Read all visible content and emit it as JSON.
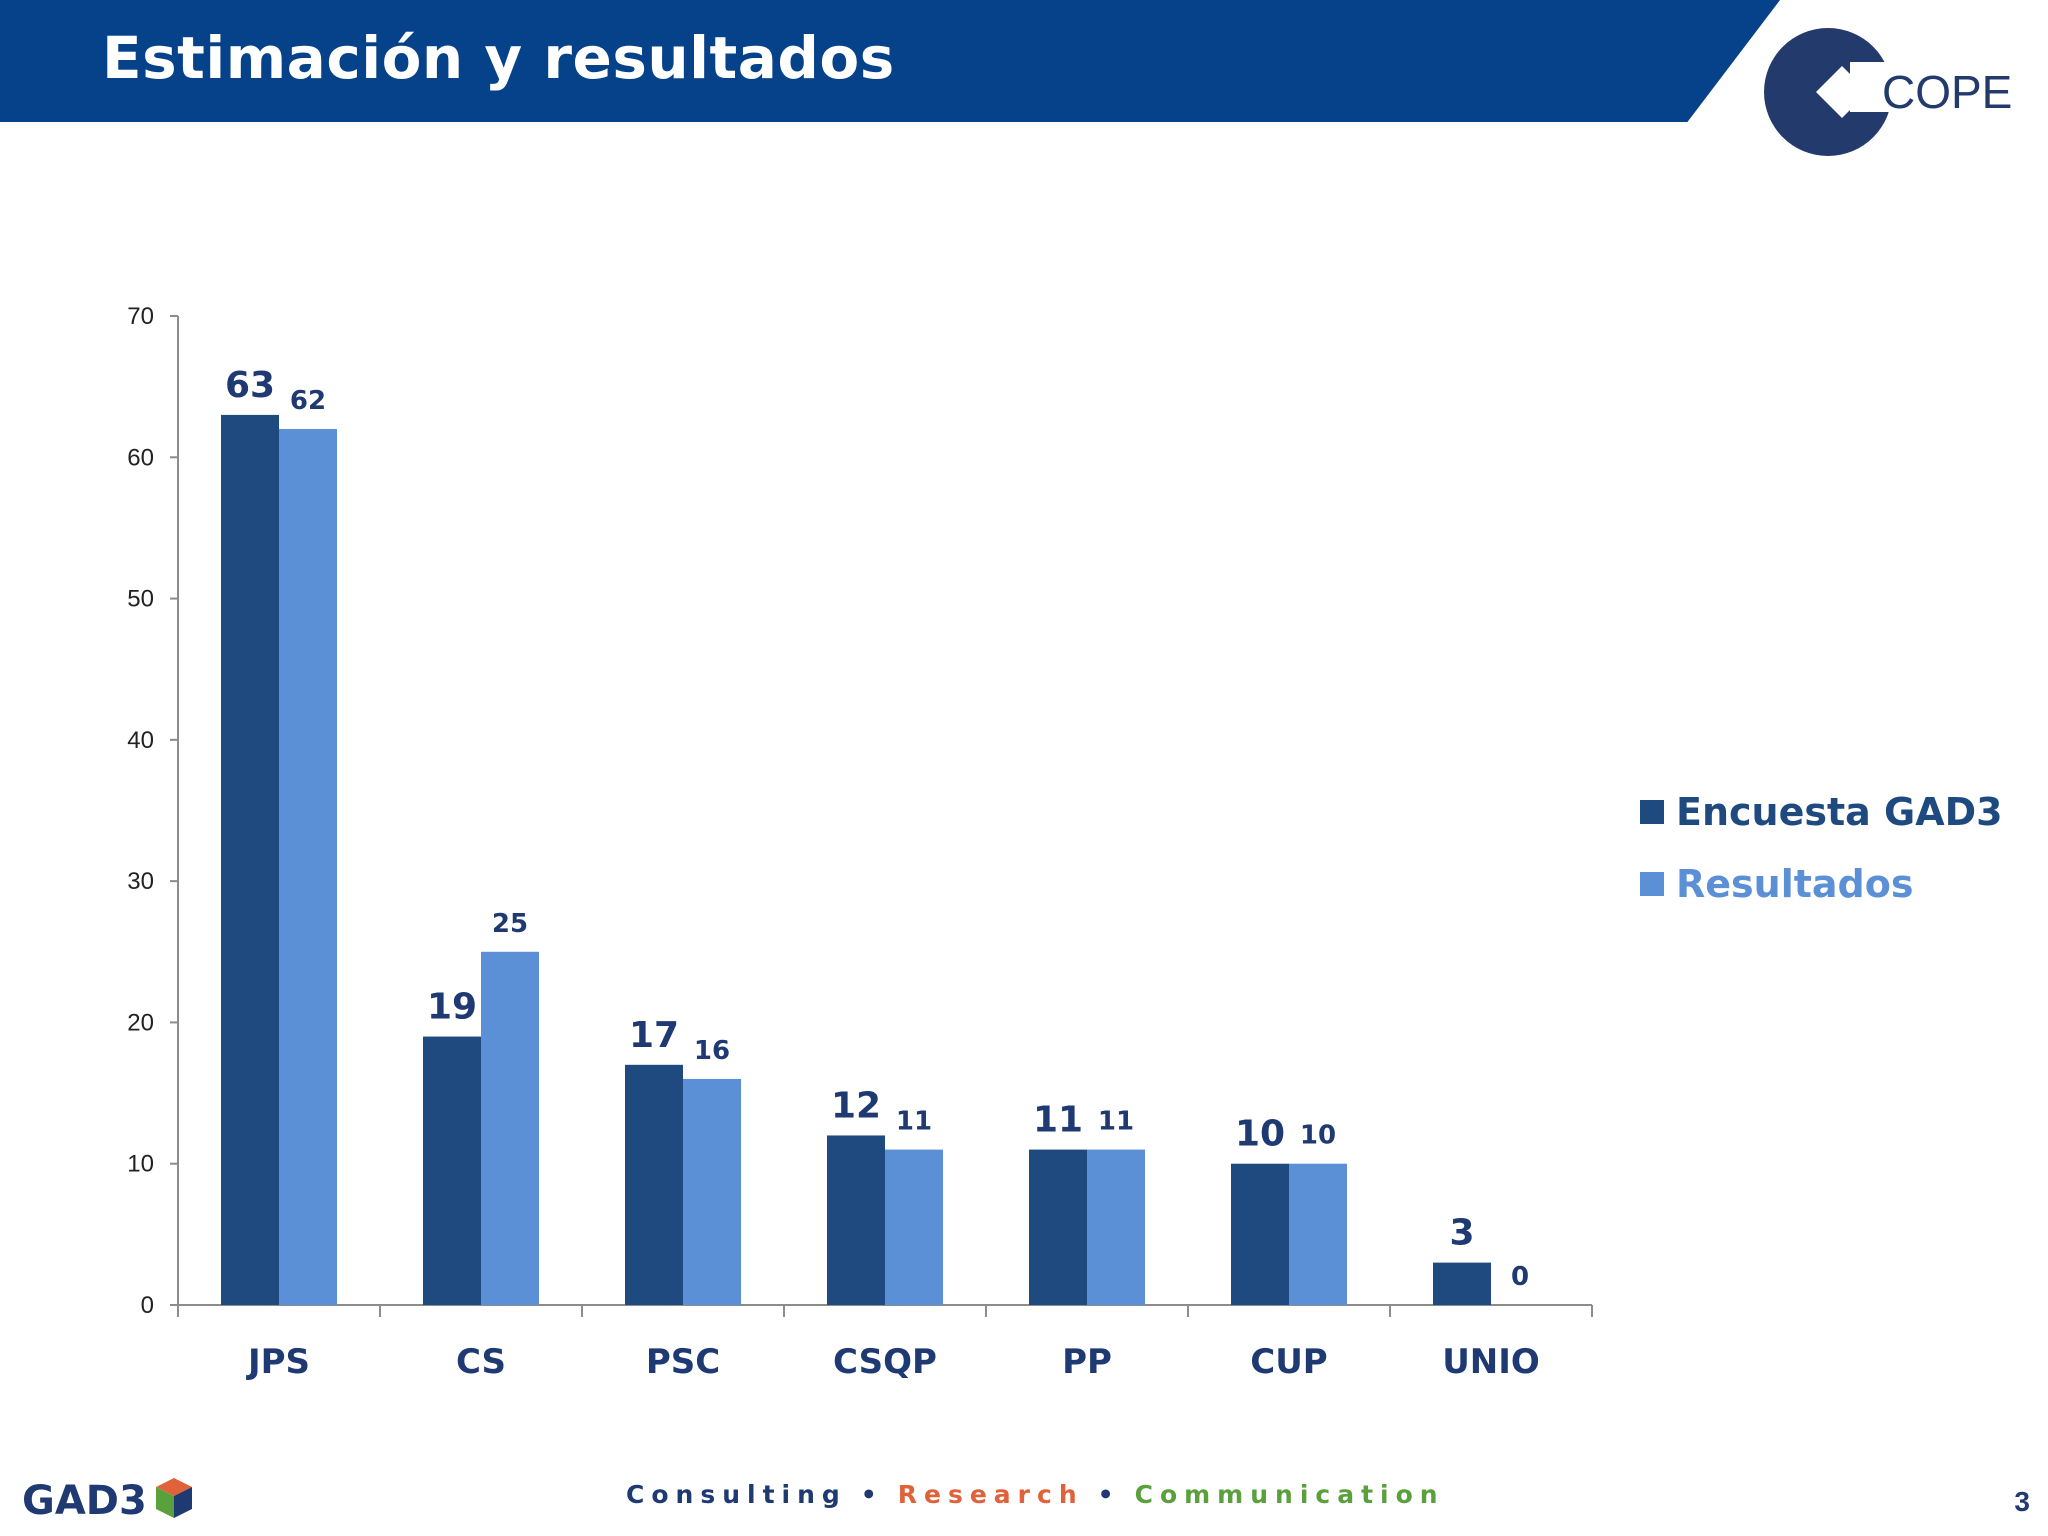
{
  "header": {
    "title": "Estimación y resultados",
    "brand_color": "#05428a"
  },
  "logo_cope": {
    "text": "COPE",
    "icon": "cope-logo-icon"
  },
  "chart_data": {
    "type": "bar",
    "categories": [
      "JPS",
      "CS",
      "PSC",
      "CSQP",
      "PP",
      "CUP",
      "UNIO"
    ],
    "series": [
      {
        "name": "Encuesta GAD3",
        "values": [
          63,
          19,
          17,
          12,
          11,
          10,
          3
        ],
        "color": "#1f4a7f"
      },
      {
        "name": "Resultados",
        "values": [
          62,
          25,
          16,
          11,
          11,
          10,
          0
        ],
        "color": "#5b8fd6"
      }
    ],
    "ylim": [
      0,
      70
    ],
    "yticks": [
      0,
      10,
      20,
      30,
      40,
      50,
      60,
      70
    ],
    "data_labels": true,
    "grid": false,
    "legend_position": "right"
  },
  "footer": {
    "logo_text": "GAD3",
    "tagline": {
      "consulting": "Consulting",
      "research": "Research",
      "communication": "Communication",
      "separator": "•"
    },
    "page_number": "3"
  }
}
